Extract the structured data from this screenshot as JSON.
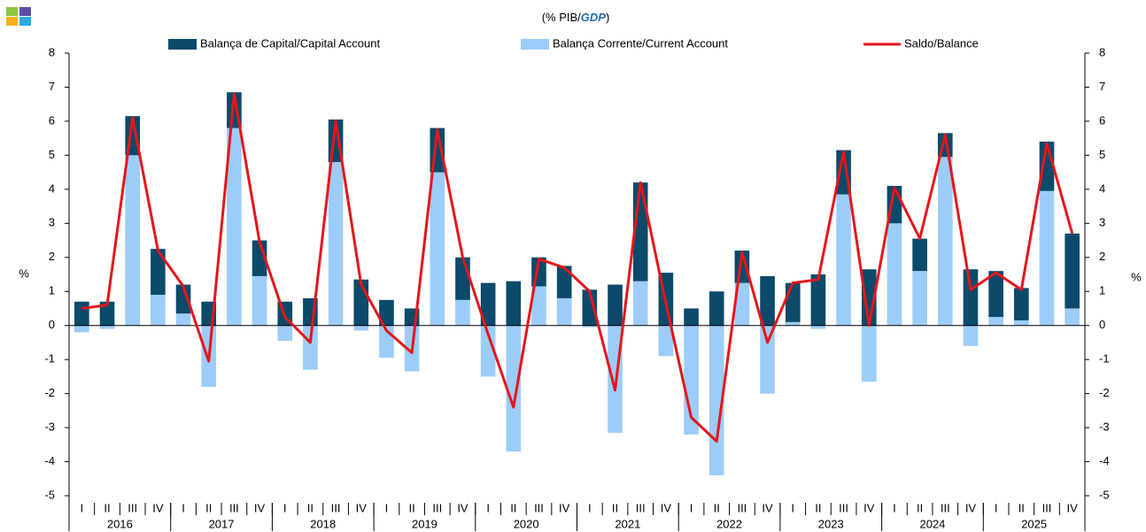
{
  "chart_data": {
    "type": "bar-line",
    "title": [
      "(% PIB/",
      "GDP",
      ")"
    ],
    "ylabel": "%",
    "y2label": "%",
    "categories": [
      "I",
      "II",
      "III",
      "IV",
      "I",
      "II",
      "III",
      "IV",
      "I",
      "II",
      "III",
      "IV",
      "I",
      "II",
      "III",
      "IV",
      "I",
      "II",
      "III",
      "IV",
      "I",
      "II",
      "III",
      "IV",
      "I",
      "II",
      "III",
      "IV",
      "I",
      "II",
      "III",
      "IV",
      "I",
      "II",
      "III",
      "IV",
      "I",
      "II",
      "III",
      "IV"
    ],
    "years": [
      "2016",
      "2017",
      "2018",
      "2019",
      "2020",
      "2021",
      "2022",
      "2023",
      "2024",
      "2025"
    ],
    "series": [
      {
        "name": "Balança de Capital/Capital Account",
        "type": "bar",
        "color": "#0b4a6a",
        "values": [
          0.7,
          0.7,
          1.15,
          1.35,
          0.85,
          0.7,
          1.05,
          1.05,
          0.7,
          0.8,
          1.25,
          1.35,
          0.75,
          0.5,
          1.3,
          1.25,
          1.25,
          1.3,
          0.85,
          0.95,
          1.05,
          1.2,
          2.9,
          1.55,
          0.5,
          1.0,
          0.95,
          1.45,
          1.15,
          1.5,
          1.3,
          1.65,
          1.1,
          0.95,
          0.7,
          1.65,
          1.35,
          0.95,
          1.45,
          2.2
        ]
      },
      {
        "name": "Balança Corrente/Current Account",
        "type": "bar",
        "color": "#9ccdf8",
        "values": [
          -0.2,
          -0.1,
          5.0,
          0.9,
          0.35,
          -1.8,
          5.8,
          1.45,
          -0.45,
          -1.3,
          4.8,
          -0.15,
          -0.95,
          -1.35,
          4.5,
          0.75,
          -1.5,
          -3.7,
          1.15,
          0.8,
          -0.05,
          -3.15,
          1.3,
          -0.9,
          -3.2,
          -4.4,
          1.25,
          -2.0,
          0.1,
          -0.1,
          3.85,
          -1.65,
          3.0,
          1.6,
          4.95,
          -0.6,
          0.25,
          0.15,
          3.95,
          0.5
        ]
      },
      {
        "name": "Saldo/Balance",
        "type": "line",
        "color": "#e8141c",
        "values": [
          0.5,
          0.6,
          6.1,
          2.2,
          1.15,
          -1.05,
          6.8,
          2.45,
          0.25,
          -0.5,
          6.0,
          1.2,
          -0.15,
          -0.8,
          5.75,
          2.0,
          -0.25,
          -2.4,
          1.95,
          1.7,
          1.0,
          -1.9,
          4.2,
          0.65,
          -2.7,
          -3.4,
          2.15,
          -0.5,
          1.25,
          1.35,
          5.1,
          0.0,
          4.05,
          2.55,
          5.6,
          1.05,
          1.55,
          1.05,
          5.35,
          2.7
        ]
      }
    ],
    "ylim": [
      -5,
      8
    ],
    "yticks": [
      -5,
      -4,
      -3,
      -2,
      -1,
      0,
      1,
      2,
      3,
      4,
      5,
      6,
      7,
      8
    ],
    "y2lim": [
      -5,
      8
    ],
    "y2ticks": [
      -5,
      -4,
      -3,
      -2,
      -1,
      0,
      1,
      2,
      3,
      4,
      5,
      6,
      7,
      8
    ],
    "legend": "top"
  }
}
